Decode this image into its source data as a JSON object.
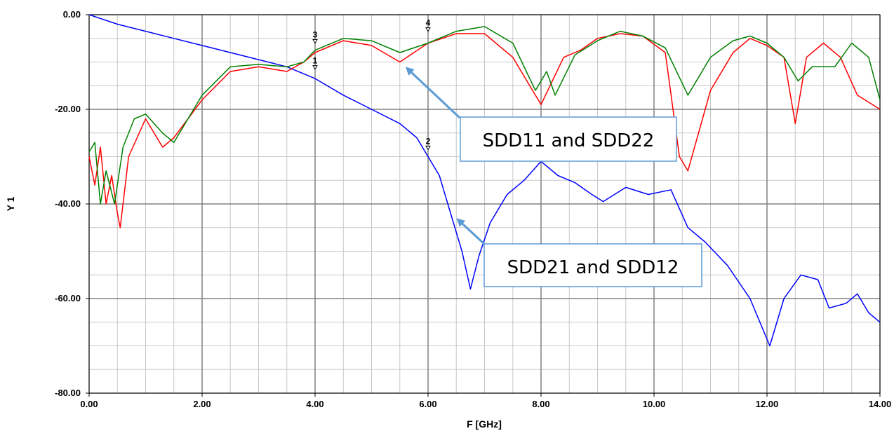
{
  "chart_data": {
    "type": "line",
    "xlabel": "F [GHz]",
    "ylabel": "Y 1",
    "xlim": [
      0,
      14
    ],
    "ylim": [
      -80,
      0
    ],
    "x_ticks": [
      "0.00",
      "2.00",
      "4.00",
      "6.00",
      "8.00",
      "10.00",
      "12.00",
      "14.00"
    ],
    "y_ticks": [
      "0.00",
      "-20.00",
      "-40.00",
      "-60.00",
      "-80.00"
    ],
    "grid": true,
    "colors": {
      "red": "#ff0000",
      "green": "#008000",
      "blue": "#0000ff",
      "arrow": "#5b9bd5",
      "box": "#5b9bd5"
    },
    "series": [
      {
        "color": "#0000ff",
        "x": [
          0,
          0.5,
          1,
          1.5,
          2,
          2.5,
          3,
          3.5,
          4,
          4.5,
          5,
          5.5,
          5.8,
          6,
          6.2,
          6.4,
          6.6,
          6.75,
          6.9,
          7.1,
          7.4,
          7.7,
          8,
          8.3,
          8.6,
          8.9,
          9.1,
          9.5,
          9.9,
          10.3,
          10.6,
          10.9,
          11.3,
          11.7,
          12.05,
          12.3,
          12.6,
          12.9,
          13.1,
          13.4,
          13.6,
          13.8,
          14
        ],
        "y": [
          0,
          -2,
          -3.5,
          -5,
          -6.5,
          -8,
          -9.5,
          -11,
          -13.5,
          -17,
          -20,
          -23,
          -26,
          -30,
          -34,
          -42,
          -50,
          -58,
          -51,
          -44,
          -38,
          -35,
          -31,
          -34,
          -35.5,
          -38,
          -39.5,
          -36.5,
          -38,
          -37,
          -45,
          -48,
          -53,
          -60,
          -70,
          -60,
          -55,
          -56,
          -62,
          -61,
          -59,
          -63,
          -65
        ]
      },
      {
        "color": "#ff0000",
        "x": [
          0,
          0.1,
          0.2,
          0.3,
          0.4,
          0.5,
          0.55,
          0.7,
          1,
          1.3,
          1.5,
          2,
          2.5,
          3,
          3.5,
          3.8,
          4,
          4.5,
          5,
          5.5,
          6,
          6.5,
          7,
          7.5,
          8,
          8.4,
          8.7,
          9,
          9.4,
          9.8,
          10.2,
          10.45,
          10.6,
          11,
          11.4,
          11.7,
          12,
          12.3,
          12.5,
          12.7,
          13,
          13.3,
          13.6,
          14
        ],
        "y": [
          -30,
          -36,
          -28,
          -40,
          -34,
          -42,
          -45,
          -30,
          -22,
          -28,
          -26,
          -18,
          -12,
          -11,
          -12,
          -10,
          -8,
          -5.5,
          -6.5,
          -10,
          -6,
          -4,
          -4,
          -9,
          -19,
          -9,
          -7.5,
          -5,
          -4,
          -4.5,
          -8,
          -30,
          -33,
          -16,
          -8,
          -5,
          -6.5,
          -9,
          -23,
          -9,
          -6,
          -9,
          -17,
          -20
        ]
      },
      {
        "color": "#008000",
        "x": [
          0,
          0.1,
          0.2,
          0.3,
          0.45,
          0.6,
          0.8,
          1,
          1.3,
          1.5,
          2,
          2.5,
          3,
          3.5,
          3.8,
          4,
          4.5,
          5,
          5.5,
          6,
          6.5,
          7,
          7.5,
          7.9,
          8.1,
          8.25,
          8.6,
          9,
          9.4,
          9.8,
          10.2,
          10.6,
          11,
          11.4,
          11.7,
          12,
          12.3,
          12.55,
          12.8,
          13.2,
          13.5,
          13.8,
          14
        ],
        "y": [
          -29,
          -27,
          -40,
          -33,
          -40,
          -28,
          -22,
          -21,
          -25,
          -27,
          -17,
          -11,
          -10.5,
          -11,
          -10,
          -7.5,
          -5,
          -5.5,
          -8,
          -6,
          -3.5,
          -2.5,
          -6,
          -16,
          -12,
          -17,
          -8.5,
          -5.5,
          -3.5,
          -4.5,
          -7,
          -17,
          -9,
          -5.5,
          -4.5,
          -6,
          -9,
          -14,
          -11,
          -11,
          -6,
          -9,
          -18
        ]
      }
    ],
    "markers": [
      {
        "label": "1",
        "x": 4.0,
        "y": -11.5
      },
      {
        "label": "2",
        "x": 6.0,
        "y": -28.5
      },
      {
        "label": "3",
        "x": 4.0,
        "y": -6.0
      },
      {
        "label": "4",
        "x": 6.0,
        "y": -3.5
      }
    ],
    "annotations": [
      {
        "text": "SDD11 and SDD22",
        "arrow_to": {
          "x": 5.6,
          "y": -11
        }
      },
      {
        "text": "SDD21 and SDD12",
        "arrow_to": {
          "x": 6.5,
          "y": -43
        }
      }
    ]
  }
}
